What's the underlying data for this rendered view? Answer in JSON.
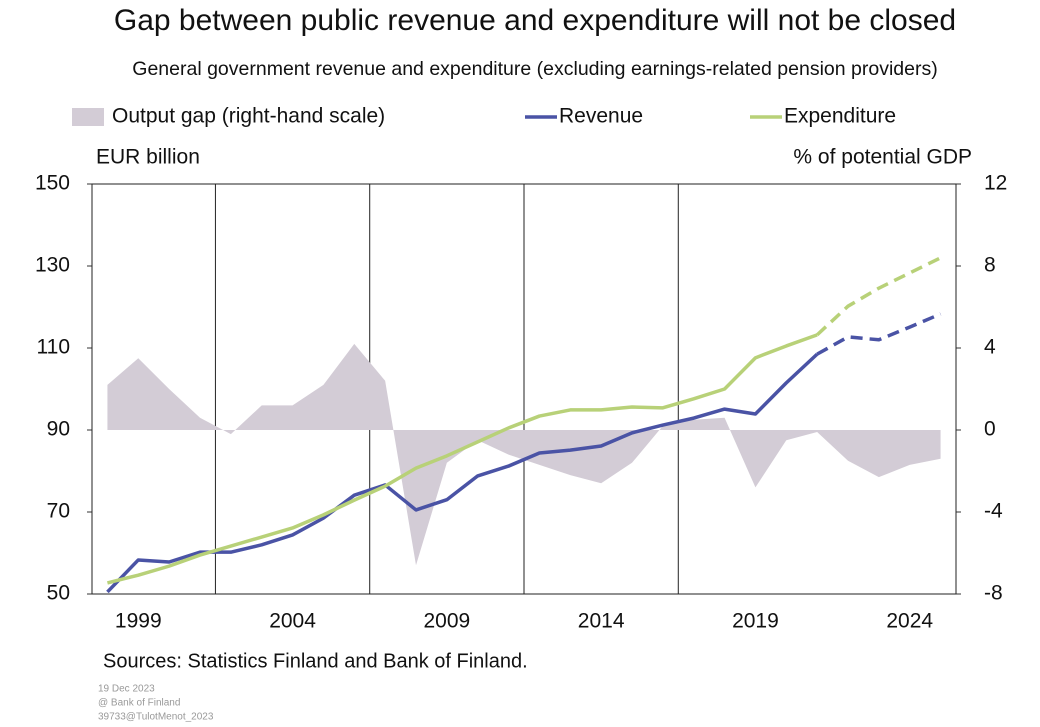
{
  "chart_data": {
    "type": "line",
    "title": "Gap between public revenue and expenditure will not be closed",
    "subtitle": "General government revenue and expenditure (excluding earnings-related pension providers)",
    "y_label": "EUR billion",
    "y2_label": "% of potential GDP",
    "source": "Sources: Statistics Finland and Bank of Finland.",
    "notes": [
      "19 Dec 2023",
      "@ Bank of Finland",
      "39733@TulotMenot_2023"
    ],
    "x": [
      1998,
      1999,
      2000,
      2001,
      2002,
      2003,
      2004,
      2005,
      2006,
      2007,
      2008,
      2009,
      2010,
      2011,
      2012,
      2013,
      2014,
      2015,
      2016,
      2017,
      2018,
      2019,
      2020,
      2021,
      2022,
      2023,
      2024,
      2025
    ],
    "xlim": [
      1997.5,
      2025.5
    ],
    "xticks": [
      1999,
      2004,
      2009,
      2014,
      2019,
      2024
    ],
    "ylim": [
      50,
      150
    ],
    "yticks": [
      50,
      70,
      90,
      110,
      130,
      150
    ],
    "y2lim": [
      -8,
      12
    ],
    "y2ticks": [
      -8,
      -4,
      0,
      4,
      8,
      12
    ],
    "forecast_start": 2021,
    "legend": "top",
    "series": [
      {
        "name": "Output gap (right-hand scale)",
        "type": "area",
        "axis": "y2",
        "color": "#d3ccd6",
        "values": [
          2.2,
          3.5,
          2.0,
          0.6,
          -0.2,
          1.2,
          1.2,
          2.2,
          4.2,
          2.4,
          -6.6,
          -1.6,
          -0.5,
          -1.2,
          -1.7,
          -2.2,
          -2.6,
          -1.6,
          0.2,
          0.5,
          0.6,
          -2.8,
          -0.5,
          -0.1,
          -1.5,
          -2.3,
          -1.7,
          -1.4
        ]
      },
      {
        "name": "Revenue",
        "type": "line",
        "color": "#4a53a5",
        "values": [
          50.5,
          58.3,
          57.8,
          60.2,
          60.2,
          62,
          64.4,
          68.5,
          74.1,
          76.6,
          70.5,
          73,
          78.8,
          81.2,
          84.4,
          85.1,
          86.1,
          89.3,
          91.2,
          92.9,
          95.1,
          93.9,
          101.5,
          108.5,
          112.7,
          112,
          115.1,
          118.3
        ]
      },
      {
        "name": "Expenditure",
        "type": "line",
        "color": "#b8d178",
        "values": [
          52.7,
          54.6,
          56.8,
          59.5,
          61.7,
          63.9,
          66.1,
          69.3,
          72.9,
          76.3,
          80.7,
          83.7,
          87.1,
          90.5,
          93.4,
          94.9,
          94.9,
          95.6,
          95.4,
          97.6,
          100,
          107.6,
          110.5,
          113.2,
          120.2,
          124.6,
          128.3,
          132
        ]
      }
    ]
  }
}
